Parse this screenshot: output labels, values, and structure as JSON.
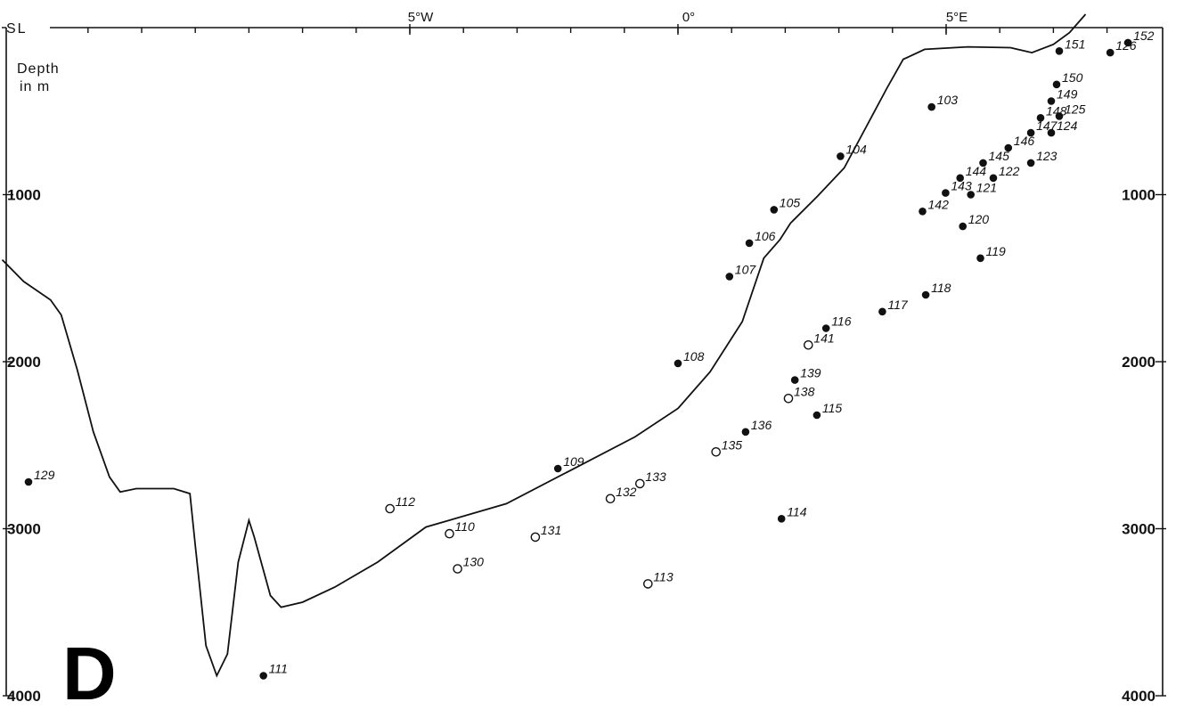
{
  "chart_data": {
    "type": "scatter",
    "panel_label": "D",
    "surface_label": "SL",
    "y_title_line1": "Depth",
    "y_title_line2": "in m",
    "x_ticks": [
      {
        "lon": -5,
        "label": "5°W"
      },
      {
        "lon": 0,
        "label": "0°"
      },
      {
        "lon": 5,
        "label": "5°E"
      }
    ],
    "y_ticks": [
      {
        "depth": 1000,
        "label": "1000"
      },
      {
        "depth": 2000,
        "label": "2000"
      },
      {
        "depth": 3000,
        "label": "3000"
      },
      {
        "depth": 4000,
        "label": "4000"
      }
    ],
    "xlim": [
      -12.6,
      8.9
    ],
    "ylim": [
      0,
      4080
    ],
    "legend": {
      "filled_marker": "filled circle",
      "open_marker": "open circle"
    },
    "bottom_profile": [
      [
        -12.6,
        1390
      ],
      [
        -12.2,
        1520
      ],
      [
        -11.7,
        1630
      ],
      [
        -11.5,
        1720
      ],
      [
        -11.2,
        2050
      ],
      [
        -10.9,
        2420
      ],
      [
        -10.6,
        2690
      ],
      [
        -10.4,
        2780
      ],
      [
        -10.1,
        2760
      ],
      [
        -9.4,
        2760
      ],
      [
        -9.1,
        2790
      ],
      [
        -9.0,
        3100
      ],
      [
        -8.8,
        3700
      ],
      [
        -8.6,
        3880
      ],
      [
        -8.4,
        3750
      ],
      [
        -8.2,
        3200
      ],
      [
        -8.0,
        2950
      ],
      [
        -7.9,
        3050
      ],
      [
        -7.6,
        3400
      ],
      [
        -7.4,
        3470
      ],
      [
        -7.0,
        3440
      ],
      [
        -6.4,
        3350
      ],
      [
        -5.6,
        3200
      ],
      [
        -4.7,
        2990
      ],
      [
        -3.2,
        2850
      ],
      [
        -2.0,
        2650
      ],
      [
        -0.8,
        2450
      ],
      [
        0.0,
        2280
      ],
      [
        0.6,
        2060
      ],
      [
        1.2,
        1760
      ],
      [
        1.6,
        1380
      ],
      [
        1.9,
        1270
      ],
      [
        2.1,
        1170
      ],
      [
        2.6,
        1010
      ],
      [
        3.1,
        840
      ],
      [
        3.5,
        600
      ],
      [
        3.9,
        360
      ],
      [
        4.2,
        190
      ],
      [
        4.6,
        130
      ],
      [
        5.4,
        115
      ],
      [
        6.2,
        120
      ],
      [
        6.6,
        150
      ],
      [
        7.0,
        100
      ],
      [
        7.3,
        30
      ],
      [
        7.6,
        -80
      ]
    ],
    "stations": [
      {
        "id": "103",
        "lon": 4.73,
        "depth": 475,
        "filled": true
      },
      {
        "id": "104",
        "lon": 3.03,
        "depth": 770,
        "filled": true
      },
      {
        "id": "105",
        "lon": 1.79,
        "depth": 1090,
        "filled": true
      },
      {
        "id": "106",
        "lon": 1.33,
        "depth": 1290,
        "filled": true
      },
      {
        "id": "107",
        "lon": 0.96,
        "depth": 1490,
        "filled": true
      },
      {
        "id": "108",
        "lon": 0.0,
        "depth": 2010,
        "filled": true
      },
      {
        "id": "109",
        "lon": -2.24,
        "depth": 2640,
        "filled": true
      },
      {
        "id": "110",
        "lon": -4.26,
        "depth": 3030,
        "filled": false
      },
      {
        "id": "111",
        "lon": -7.73,
        "depth": 3880,
        "filled": true
      },
      {
        "id": "112",
        "lon": -5.37,
        "depth": 2880,
        "filled": false
      },
      {
        "id": "113",
        "lon": -0.56,
        "depth": 3330,
        "filled": false
      },
      {
        "id": "114",
        "lon": 1.93,
        "depth": 2940,
        "filled": true
      },
      {
        "id": "115",
        "lon": 2.59,
        "depth": 2320,
        "filled": true
      },
      {
        "id": "116",
        "lon": 2.76,
        "depth": 1800,
        "filled": true
      },
      {
        "id": "117",
        "lon": 3.81,
        "depth": 1700,
        "filled": true
      },
      {
        "id": "118",
        "lon": 4.62,
        "depth": 1600,
        "filled": true
      },
      {
        "id": "119",
        "lon": 5.64,
        "depth": 1380,
        "filled": true
      },
      {
        "id": "120",
        "lon": 5.31,
        "depth": 1190,
        "filled": true
      },
      {
        "id": "121",
        "lon": 5.46,
        "depth": 1000,
        "filled": true
      },
      {
        "id": "122",
        "lon": 5.88,
        "depth": 900,
        "filled": true
      },
      {
        "id": "123",
        "lon": 6.58,
        "depth": 810,
        "filled": true
      },
      {
        "id": "124",
        "lon": 6.96,
        "depth": 630,
        "filled": true
      },
      {
        "id": "125",
        "lon": 7.11,
        "depth": 530,
        "filled": true
      },
      {
        "id": "126",
        "lon": 8.06,
        "depth": 150,
        "filled": true
      },
      {
        "id": "129",
        "lon": -12.11,
        "depth": 2720,
        "filled": true
      },
      {
        "id": "130",
        "lon": -4.11,
        "depth": 3240,
        "filled": false
      },
      {
        "id": "131",
        "lon": -2.66,
        "depth": 3050,
        "filled": false
      },
      {
        "id": "132",
        "lon": -1.26,
        "depth": 2820,
        "filled": false
      },
      {
        "id": "133",
        "lon": -0.71,
        "depth": 2730,
        "filled": false
      },
      {
        "id": "135",
        "lon": 0.71,
        "depth": 2540,
        "filled": false
      },
      {
        "id": "136",
        "lon": 1.26,
        "depth": 2420,
        "filled": true
      },
      {
        "id": "138",
        "lon": 2.06,
        "depth": 2220,
        "filled": false
      },
      {
        "id": "139",
        "lon": 2.18,
        "depth": 2110,
        "filled": true
      },
      {
        "id": "141",
        "lon": 2.43,
        "depth": 1900,
        "filled": false
      },
      {
        "id": "142",
        "lon": 4.56,
        "depth": 1100,
        "filled": true
      },
      {
        "id": "143",
        "lon": 4.99,
        "depth": 990,
        "filled": true
      },
      {
        "id": "144",
        "lon": 5.26,
        "depth": 900,
        "filled": true
      },
      {
        "id": "145",
        "lon": 5.69,
        "depth": 810,
        "filled": true
      },
      {
        "id": "146",
        "lon": 6.16,
        "depth": 720,
        "filled": true
      },
      {
        "id": "147",
        "lon": 6.58,
        "depth": 630,
        "filled": true
      },
      {
        "id": "148",
        "lon": 6.76,
        "depth": 540,
        "filled": true
      },
      {
        "id": "149",
        "lon": 6.96,
        "depth": 440,
        "filled": true
      },
      {
        "id": "150",
        "lon": 7.06,
        "depth": 340,
        "filled": true
      },
      {
        "id": "151",
        "lon": 7.11,
        "depth": 140,
        "filled": true
      },
      {
        "id": "152",
        "lon": 8.39,
        "depth": 90,
        "filled": true
      }
    ]
  }
}
